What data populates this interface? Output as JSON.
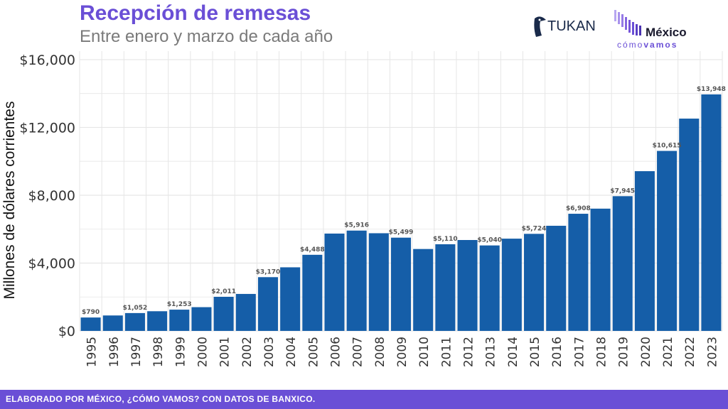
{
  "header": {
    "title": "Recepción de remesas",
    "subtitle": "Entre enero y marzo de cada año"
  },
  "logos": {
    "tukan": "TUKAN",
    "mcv_line1": "México",
    "mcv_line2_a": "cómo",
    "mcv_line2_b": "vamos"
  },
  "footer": {
    "credit": "ELABORADO POR MÉXICO, ¿CÓMO VAMOS? CON DATOS DE BANXICO."
  },
  "colors": {
    "bar": "#155ea8",
    "accent": "#6a4fd6",
    "grid": "#e6e6e6",
    "label": "#555555"
  },
  "chart_data": {
    "type": "bar",
    "title": "Recepción de remesas",
    "subtitle": "Entre enero y marzo de cada año",
    "ylabel": "Millones de dólares corrientes",
    "xlabel": "",
    "ylim": [
      0,
      16500
    ],
    "yticks": [
      0,
      4000,
      8000,
      12000,
      16000
    ],
    "ytick_labels": [
      "$0",
      "$4,000",
      "$8,000",
      "$12,000",
      "$16,000"
    ],
    "grid": true,
    "categories": [
      "1995",
      "1996",
      "1997",
      "1998",
      "1999",
      "2000",
      "2001",
      "2002",
      "2003",
      "2004",
      "2005",
      "2006",
      "2007",
      "2008",
      "2009",
      "2010",
      "2011",
      "2012",
      "2013",
      "2014",
      "2015",
      "2016",
      "2017",
      "2018",
      "2019",
      "2020",
      "2021",
      "2022",
      "2023"
    ],
    "values": [
      790,
      910,
      1052,
      1160,
      1253,
      1400,
      2011,
      2180,
      3170,
      3750,
      4488,
      5740,
      5916,
      5760,
      5499,
      4830,
      5110,
      5360,
      5040,
      5440,
      5724,
      6200,
      6908,
      7210,
      7945,
      9420,
      10615,
      12520,
      13948
    ],
    "data_labels": [
      "$790",
      "",
      "$1,052",
      "",
      "$1,253",
      "",
      "$2,011",
      "",
      "$3,170",
      "",
      "$4,488",
      "",
      "$5,916",
      "",
      "$5,499",
      "",
      "$5,110",
      "",
      "$5,040",
      "",
      "$5,724",
      "",
      "$6,908",
      "",
      "$7,945",
      "",
      "$10,615",
      "",
      "$13,948"
    ]
  }
}
